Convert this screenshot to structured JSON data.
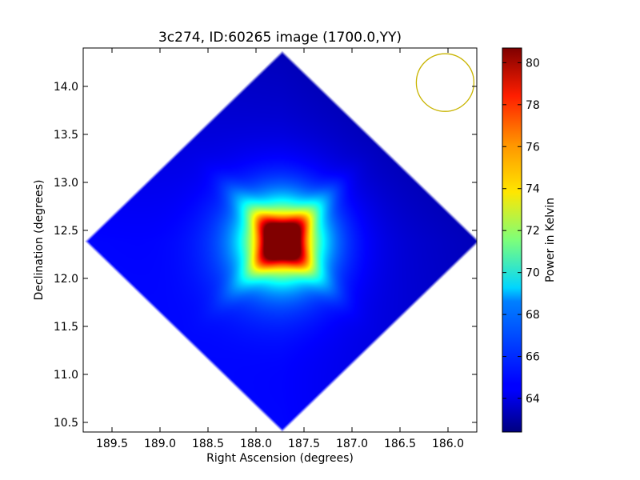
{
  "chart_data": {
    "type": "heatmap",
    "title": "3c274, ID:60265 image (1700.0,YY)",
    "xlabel": "Right Ascension (degrees)",
    "ylabel": "Declination (degrees)",
    "xlim": [
      189.8,
      185.7
    ],
    "ylim": [
      10.4,
      14.4
    ],
    "x_inverted": true,
    "x_ticks": [
      189.5,
      189.0,
      188.5,
      188.0,
      187.5,
      187.0,
      186.5,
      186.0
    ],
    "x_tick_labels": [
      "189.5",
      "189.0",
      "188.5",
      "188.0",
      "187.5",
      "187.0",
      "186.5",
      "186.0"
    ],
    "y_ticks": [
      10.5,
      11.0,
      11.5,
      12.0,
      12.5,
      13.0,
      13.5,
      14.0
    ],
    "y_tick_labels": [
      "10.5",
      "11.0",
      "11.5",
      "12.0",
      "12.5",
      "13.0",
      "13.5",
      "14.0"
    ],
    "colormap": "jet",
    "colorbar": {
      "label": "Power in Kelvin",
      "range": [
        62.4,
        80.7
      ],
      "ticks": [
        64,
        66,
        68,
        70,
        72,
        74,
        76,
        78,
        80
      ],
      "tick_labels": [
        "64",
        "66",
        "68",
        "70",
        "72",
        "74",
        "76",
        "78",
        "80"
      ]
    },
    "footprint": {
      "shape": "diamond",
      "center": [
        187.73,
        12.39
      ],
      "half_width_ra": 2.05,
      "half_height_dec": 1.98
    },
    "background_level": 64.5,
    "peak": {
      "ra": 187.73,
      "dec": 12.39,
      "value": 80.7
    },
    "beam_circle": {
      "ra": 186.03,
      "dec": 14.04,
      "radius_dec": 0.3,
      "color": "#c8b400"
    }
  }
}
